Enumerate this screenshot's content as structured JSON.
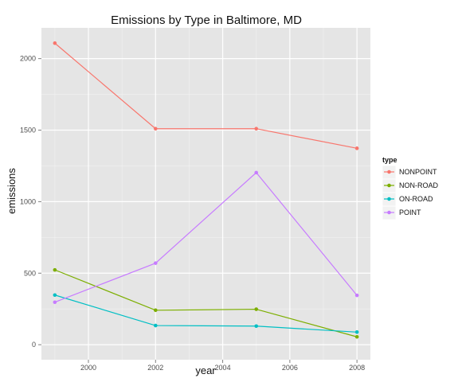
{
  "chart_data": {
    "type": "line",
    "title": "Emissions by Type in Baltimore, MD",
    "xlabel": "year",
    "ylabel": "emissions",
    "x": [
      1999,
      2002,
      2005,
      2008
    ],
    "xlim": [
      1998.6,
      2008.4
    ],
    "ylim": [
      -105,
      2215
    ],
    "xticks": [
      2000,
      2002,
      2004,
      2006,
      2008
    ],
    "yticks": [
      0,
      500,
      1000,
      1500,
      2000
    ],
    "grid": true,
    "legend": {
      "title": "type",
      "placement": "right"
    },
    "series": [
      {
        "name": "NONPOINT",
        "color": "#F8766D",
        "values": [
          2108,
          1510,
          1510,
          1373
        ]
      },
      {
        "name": "NON-ROAD",
        "color": "#7CAE00",
        "values": [
          523,
          241,
          248,
          55
        ]
      },
      {
        "name": "ON-ROAD",
        "color": "#00BFC4",
        "values": [
          347,
          134,
          130,
          88
        ]
      },
      {
        "name": "POINT",
        "color": "#C77CFF",
        "values": [
          297,
          570,
          1203,
          345
        ]
      }
    ]
  }
}
